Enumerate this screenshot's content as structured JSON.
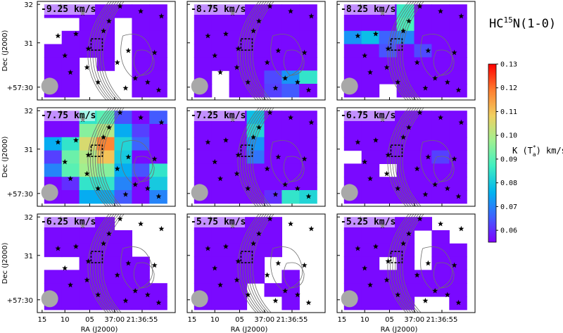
{
  "chart_data": {
    "type": "heatmap",
    "title": "HC15N(1-0)",
    "title_parts": {
      "prefix": "HC",
      "sup": "15",
      "suffix": "N(1-0)"
    },
    "xlabel": "RA (J2000)",
    "ylabel": "Dec (J2000)",
    "x_ticks": [
      "15",
      "10",
      "05",
      "37:00",
      "21:36:55"
    ],
    "y_ticks": [
      "32",
      "31",
      "+57:30"
    ],
    "colorbar": {
      "label": "K (T*a) km/s",
      "label_parts": {
        "prefix": "K (T",
        "sup": "*",
        "sub": "a",
        "suffix": ") km/s"
      },
      "min": 0.055,
      "max": 0.13,
      "ticks": [
        "0.13",
        "0.12",
        "0.11",
        "0.10",
        "0.09",
        "0.08",
        "0.07",
        "0.06"
      ],
      "colormap": "rainbow"
    },
    "grid_cols": 7,
    "grid_rows": 7,
    "colors": {
      "beam": "#a8a8a8",
      "contour": "#6e6e6e"
    },
    "panels": [
      {
        "velocity": "-9.25 km/s",
        "values": [
          [
            0.056,
            0.056,
            0.056,
            0.056,
            0.056,
            0.056,
            0.056
          ],
          [
            null,
            null,
            0.056,
            0.056,
            null,
            0.056,
            0.056
          ],
          [
            null,
            0.056,
            0.056,
            0.056,
            null,
            0.056,
            0.056
          ],
          [
            0.056,
            0.056,
            0.056,
            0.056,
            null,
            0.056,
            0.056
          ],
          [
            0.056,
            0.056,
            null,
            0.056,
            null,
            0.056,
            0.056
          ],
          [
            0.056,
            0.056,
            null,
            null,
            null,
            0.056,
            0.056
          ],
          [
            0.056,
            0.056,
            null,
            null,
            null,
            0.056,
            0.056
          ]
        ]
      },
      {
        "velocity": "-8.75 km/s",
        "values": [
          [
            0.056,
            0.056,
            0.056,
            0.056,
            0.056,
            0.056,
            0.056
          ],
          [
            0.056,
            0.056,
            0.056,
            0.056,
            0.056,
            0.056,
            0.056
          ],
          [
            0.056,
            0.056,
            0.056,
            0.056,
            0.056,
            0.056,
            0.056
          ],
          [
            0.056,
            0.056,
            0.056,
            0.056,
            0.056,
            0.056,
            0.056
          ],
          [
            0.056,
            0.056,
            0.056,
            0.056,
            0.056,
            0.056,
            0.056
          ],
          [
            0.056,
            null,
            0.056,
            0.056,
            0.063,
            0.072,
            0.085
          ],
          [
            0.056,
            null,
            0.056,
            0.056,
            0.062,
            0.065,
            0.056
          ]
        ]
      },
      {
        "velocity": "-8.25 km/s",
        "values": [
          [
            0.056,
            0.056,
            0.056,
            0.086,
            0.056,
            0.056,
            0.056
          ],
          [
            0.056,
            0.056,
            0.056,
            0.088,
            0.056,
            0.056,
            0.056
          ],
          [
            0.072,
            0.078,
            0.066,
            0.07,
            0.056,
            0.056,
            0.056
          ],
          [
            0.056,
            0.056,
            0.064,
            0.056,
            0.063,
            0.056,
            0.056
          ],
          [
            0.056,
            0.056,
            0.056,
            0.056,
            0.056,
            0.056,
            0.056
          ],
          [
            0.056,
            0.056,
            0.056,
            0.056,
            0.056,
            0.056,
            0.056
          ],
          [
            0.056,
            0.056,
            null,
            0.056,
            0.056,
            0.056,
            0.056
          ]
        ]
      },
      {
        "velocity": "-7.75 km/s",
        "values": [
          [
            0.056,
            0.056,
            0.085,
            0.09,
            0.064,
            0.056,
            0.065
          ],
          [
            0.056,
            0.056,
            0.095,
            0.1,
            0.075,
            0.062,
            0.056
          ],
          [
            0.075,
            0.085,
            0.105,
            0.118,
            0.082,
            0.066,
            0.056
          ],
          [
            0.062,
            0.092,
            0.1,
            0.11,
            0.08,
            0.056,
            0.056
          ],
          [
            0.07,
            0.09,
            0.098,
            0.095,
            0.075,
            0.064,
            0.085
          ],
          [
            0.056,
            0.06,
            0.085,
            0.085,
            0.07,
            0.056,
            0.08
          ],
          [
            0.056,
            0.056,
            0.075,
            0.075,
            0.065,
            0.056,
            0.07
          ]
        ]
      },
      {
        "velocity": "-7.25 km/s",
        "values": [
          [
            0.056,
            0.056,
            0.056,
            0.078,
            0.056,
            0.056,
            0.056
          ],
          [
            0.056,
            0.056,
            0.056,
            0.082,
            0.056,
            0.056,
            0.056
          ],
          [
            0.056,
            0.056,
            0.056,
            0.072,
            0.056,
            0.056,
            0.056
          ],
          [
            0.056,
            0.056,
            0.056,
            0.068,
            0.056,
            0.056,
            0.056
          ],
          [
            0.056,
            0.056,
            0.056,
            0.056,
            0.056,
            0.056,
            0.056
          ],
          [
            0.056,
            0.056,
            0.056,
            0.056,
            0.056,
            0.056,
            0.056
          ],
          [
            0.056,
            0.056,
            0.056,
            0.056,
            0.06,
            0.085,
            0.082
          ]
        ]
      },
      {
        "velocity": "-6.75 km/s",
        "values": [
          [
            0.056,
            0.056,
            0.056,
            0.056,
            0.056,
            0.056,
            0.056
          ],
          [
            0.056,
            0.056,
            0.056,
            0.056,
            0.056,
            0.056,
            0.056
          ],
          [
            0.056,
            0.056,
            0.056,
            0.056,
            0.056,
            0.056,
            0.056
          ],
          [
            null,
            0.056,
            0.056,
            0.056,
            0.056,
            0.062,
            0.056
          ],
          [
            0.056,
            0.056,
            null,
            0.056,
            0.056,
            0.056,
            0.056
          ],
          [
            0.056,
            0.056,
            0.056,
            0.056,
            0.056,
            0.056,
            0.056
          ],
          [
            0.056,
            0.056,
            0.056,
            0.056,
            0.056,
            0.056,
            0.056
          ]
        ]
      },
      {
        "velocity": "-6.25 km/s",
        "values": [
          [
            0.056,
            0.056,
            0.056,
            0.056,
            null,
            null,
            null
          ],
          [
            0.056,
            0.056,
            0.056,
            0.056,
            0.056,
            null,
            null
          ],
          [
            0.056,
            0.056,
            0.056,
            0.056,
            0.056,
            null,
            null
          ],
          [
            null,
            null,
            0.056,
            0.056,
            0.056,
            0.056,
            null
          ],
          [
            0.056,
            0.056,
            0.056,
            0.056,
            0.056,
            0.056,
            null
          ],
          [
            0.056,
            0.056,
            0.056,
            0.056,
            0.056,
            0.056,
            0.056
          ],
          [
            0.056,
            0.056,
            0.056,
            0.056,
            0.056,
            0.056,
            0.056
          ]
        ]
      },
      {
        "velocity": "-5.75 km/s",
        "values": [
          [
            0.056,
            0.056,
            0.056,
            0.056,
            0.056,
            null,
            null
          ],
          [
            0.056,
            0.056,
            0.056,
            0.056,
            0.056,
            null,
            null
          ],
          [
            0.056,
            0.056,
            0.056,
            0.056,
            0.056,
            null,
            null
          ],
          [
            0.056,
            0.056,
            0.056,
            0.056,
            null,
            null,
            null
          ],
          [
            0.056,
            0.056,
            0.056,
            0.056,
            null,
            0.056,
            null
          ],
          [
            0.056,
            0.056,
            0.056,
            null,
            0.056,
            0.056,
            null
          ],
          [
            0.056,
            0.056,
            0.056,
            null,
            null,
            0.056,
            null
          ]
        ]
      },
      {
        "velocity": "-5.25 km/s",
        "values": [
          [
            0.056,
            0.056,
            0.056,
            0.056,
            0.056,
            null,
            null
          ],
          [
            0.056,
            0.056,
            0.056,
            0.056,
            null,
            0.056,
            null
          ],
          [
            0.056,
            0.056,
            0.056,
            0.056,
            null,
            0.056,
            0.056
          ],
          [
            0.056,
            0.056,
            null,
            0.056,
            null,
            0.056,
            0.056
          ],
          [
            0.056,
            0.056,
            0.056,
            0.056,
            0.056,
            0.056,
            0.056
          ],
          [
            0.056,
            0.056,
            0.056,
            0.056,
            0.056,
            0.056,
            0.056
          ],
          [
            0.056,
            0.056,
            0.056,
            0.056,
            null,
            null,
            0.056
          ]
        ]
      }
    ]
  }
}
